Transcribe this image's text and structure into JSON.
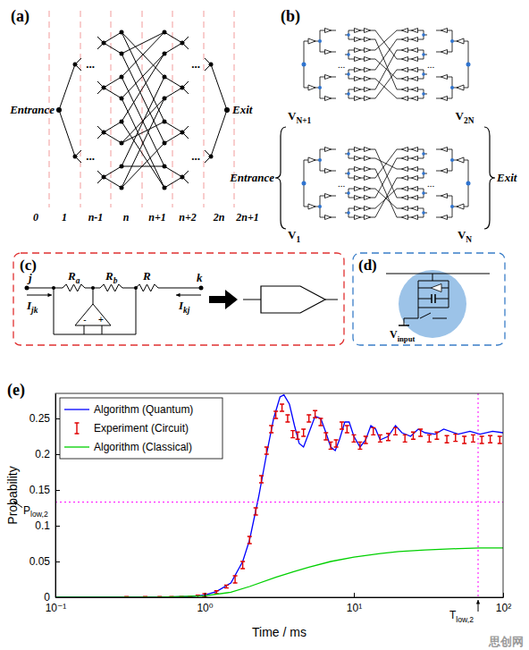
{
  "panel_a": {
    "label": "(a)",
    "entrance": "Entrance",
    "exit": "Exit",
    "columns": [
      "0",
      "1",
      "n-1",
      "n",
      "n+1",
      "n+2",
      "2n",
      "2n+1"
    ],
    "ellipsis": "..."
  },
  "panel_b": {
    "label": "(b)",
    "entrance": "Entrance",
    "exit": "Exit",
    "ellipsis": "...",
    "voltages": [
      {
        "base": "V",
        "sub": "N+1"
      },
      {
        "base": "V",
        "sub": "2N"
      },
      {
        "base": "V",
        "sub": "1"
      },
      {
        "base": "V",
        "sub": "N"
      }
    ]
  },
  "panel_c": {
    "label": "(c)",
    "nodes": [
      "j",
      "k"
    ],
    "currents": [
      {
        "base": "I",
        "sub": "jk"
      },
      {
        "base": "I",
        "sub": "kj"
      }
    ],
    "resistors": [
      {
        "base": "R",
        "sub": "a"
      },
      {
        "base": "R",
        "sub": "b"
      },
      {
        "base": "R"
      }
    ],
    "opamp_signs": [
      "-",
      "+"
    ]
  },
  "panel_d": {
    "label": "(d)",
    "input": {
      "base": "V",
      "sub": "input"
    }
  },
  "watermark": "思创网",
  "chart_data": {
    "type": "line",
    "title": "(e)",
    "xlabel": "Time / ms",
    "ylabel": "Probability",
    "log": "x",
    "xlim": [
      0.1,
      100
    ],
    "ylim": [
      0,
      0.285
    ],
    "xticks": [
      {
        "value": 0.1,
        "label": "10⁻¹"
      },
      {
        "value": 1,
        "label": "10⁰"
      },
      {
        "value": 10,
        "label": "10¹"
      },
      {
        "value": 100,
        "label": "10²"
      }
    ],
    "yticks": [
      0,
      0.05,
      0.1,
      0.15,
      0.2,
      0.25
    ],
    "grid": false,
    "legend": "upper left",
    "series": [
      {
        "name": "Algorithm (Quantum)",
        "color": "#0000ff",
        "type": "line",
        "x": [
          0.1,
          0.5,
          0.8,
          1.0,
          1.2,
          1.5,
          1.8,
          2.0,
          2.3,
          2.6,
          2.9,
          3.2,
          3.4,
          3.7,
          4.0,
          4.3,
          4.6,
          5.0,
          5.5,
          6.0,
          6.5,
          7.0,
          7.5,
          8.0,
          8.7,
          9.3,
          10,
          11,
          12,
          13,
          14,
          15,
          17,
          19,
          21,
          24,
          27,
          30,
          35,
          40,
          50,
          60,
          70,
          85,
          100
        ],
        "values": [
          0,
          0,
          0.001,
          0.003,
          0.008,
          0.02,
          0.05,
          0.08,
          0.14,
          0.2,
          0.25,
          0.28,
          0.283,
          0.27,
          0.24,
          0.215,
          0.21,
          0.23,
          0.253,
          0.25,
          0.23,
          0.21,
          0.205,
          0.22,
          0.245,
          0.245,
          0.225,
          0.21,
          0.22,
          0.24,
          0.235,
          0.22,
          0.225,
          0.24,
          0.23,
          0.225,
          0.235,
          0.23,
          0.228,
          0.235,
          0.228,
          0.232,
          0.228,
          0.232,
          0.23
        ]
      },
      {
        "name": "Experiment (Circuit)",
        "color": "#e00000",
        "type": "errorbar",
        "x": [
          0.3,
          0.4,
          0.5,
          0.6,
          0.7,
          0.8,
          0.9,
          1.0,
          1.2,
          1.4,
          1.6,
          1.8,
          2.0,
          2.2,
          2.4,
          2.6,
          2.8,
          3.0,
          3.3,
          3.6,
          3.9,
          4.2,
          4.6,
          5.0,
          5.5,
          6.0,
          6.5,
          7.0,
          7.6,
          8.3,
          9.0,
          10,
          11,
          12,
          13.5,
          15,
          17,
          19,
          22,
          25,
          28,
          32,
          36,
          42,
          48,
          55,
          63,
          72,
          82,
          95
        ],
        "values": [
          0,
          0,
          0,
          0,
          0,
          0,
          0.001,
          0.003,
          0.007,
          0.015,
          0.025,
          0.045,
          0.08,
          0.12,
          0.165,
          0.205,
          0.235,
          0.255,
          0.265,
          0.25,
          0.228,
          0.226,
          0.23,
          0.25,
          0.256,
          0.245,
          0.225,
          0.212,
          0.215,
          0.24,
          0.235,
          0.222,
          0.212,
          0.22,
          0.232,
          0.222,
          0.224,
          0.232,
          0.222,
          0.226,
          0.23,
          0.222,
          0.226,
          0.221,
          0.223,
          0.22,
          0.222,
          0.22,
          0.221,
          0.22
        ],
        "errors": [
          0.001,
          0.001,
          0.001,
          0.001,
          0.001,
          0.001,
          0.002,
          0.002,
          0.002,
          0.002,
          0.005,
          0.005,
          0.005,
          0.005,
          0.005,
          0.005,
          0.005,
          0.005,
          0.005,
          0.005,
          0.005,
          0.005,
          0.005,
          0.005,
          0.005,
          0.005,
          0.005,
          0.005,
          0.005,
          0.005,
          0.005,
          0.005,
          0.005,
          0.005,
          0.005,
          0.005,
          0.005,
          0.005,
          0.005,
          0.005,
          0.005,
          0.005,
          0.005,
          0.005,
          0.005,
          0.005,
          0.005,
          0.005,
          0.005,
          0.005
        ]
      },
      {
        "name": "Algorithm (Classical)",
        "color": "#00d000",
        "type": "line",
        "x": [
          0.1,
          0.5,
          1,
          1.5,
          2,
          3,
          4,
          5,
          7,
          10,
          15,
          20,
          30,
          50,
          70,
          100
        ],
        "values": [
          0,
          0,
          0.002,
          0.007,
          0.015,
          0.028,
          0.036,
          0.042,
          0.05,
          0.056,
          0.061,
          0.064,
          0.066,
          0.068,
          0.069,
          0.069
        ]
      }
    ],
    "annotations": [
      {
        "base": "P",
        "sub": "low,2",
        "y": 0.133
      },
      {
        "base": "T",
        "sub": "low,2",
        "x": 68
      }
    ]
  }
}
